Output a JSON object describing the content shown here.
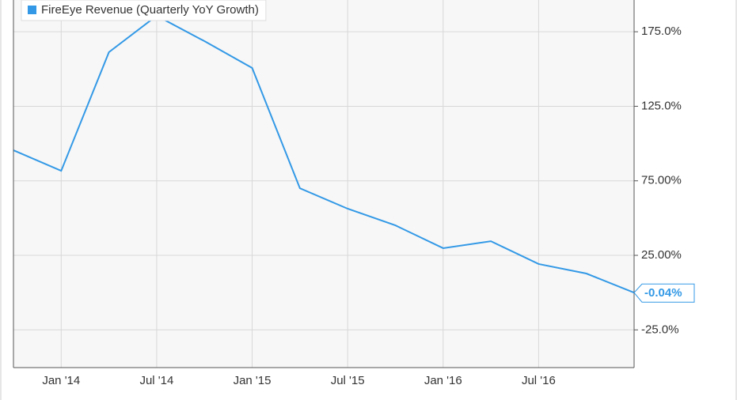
{
  "chart_data": {
    "type": "line",
    "categories": [
      null,
      "Jan '14",
      null,
      "Jul '14",
      null,
      "Jan '15",
      null,
      "Jul '15",
      null,
      "Jan '16",
      null,
      "Jul '16",
      null,
      null
    ],
    "series": [
      {
        "name": "FireEye Revenue (Quarterly YoY Growth)",
        "color": "#3399e6",
        "values": [
          95.5,
          81.7,
          161.3,
          185.7,
          168.7,
          150.7,
          70.0,
          56.3,
          45.1,
          29.8,
          34.5,
          19.2,
          12.8,
          -0.04
        ],
        "value_labels": [
          null,
          null,
          null,
          null,
          null,
          null,
          null,
          null,
          null,
          null,
          null,
          null,
          null,
          "-0.04%"
        ]
      }
    ],
    "ylim": [
      -50.3,
      196.3
    ],
    "yticks": [
      {
        "value": -25,
        "label": "-25.0%"
      },
      {
        "value": 25,
        "label": "25.00%"
      },
      {
        "value": 75,
        "label": "75.00%"
      },
      {
        "value": 125,
        "label": "125.0%"
      },
      {
        "value": 175,
        "label": "175.0%"
      }
    ],
    "grid": true,
    "legend": "top-left"
  }
}
